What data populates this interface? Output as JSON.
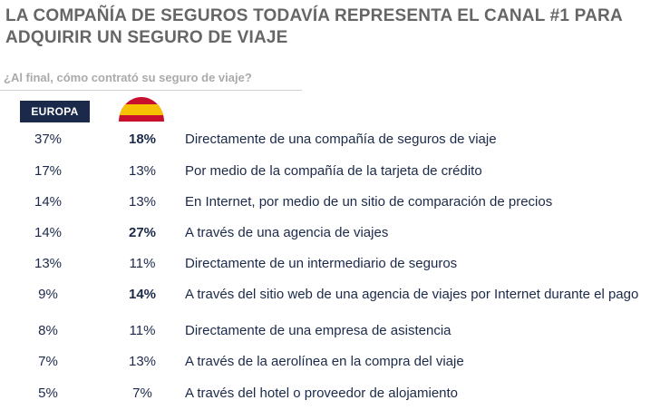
{
  "title_lines": [
    "LA COMPAÑÍA DE SEGUROS TODAVÍA REPRESENTA EL CANAL #1 PARA",
    "ADQUIRIR UN SEGURO DE VIAJE"
  ],
  "question": "¿Al final, cómo contrató su seguro de viaje?",
  "colors": {
    "text_navy": "#1b2a4a",
    "title_gray": "#666666",
    "question_gray": "#aaaaaa",
    "flag_red": "#c8102e",
    "flag_yellow": "#f6c100"
  },
  "chart_data": {
    "type": "table",
    "columns": [
      "EUROPA",
      "spain-flag",
      ""
    ],
    "europa_header": "EUROPA",
    "flag_icon": "spain-flag-icon",
    "rows": [
      {
        "europa": "37%",
        "spain": "18%",
        "spain_bold": true,
        "label": "Directamente de una compañía de seguros de viaje"
      },
      {
        "europa": "17%",
        "spain": "13%",
        "spain_bold": false,
        "label": "Por medio de la compañía de la tarjeta de crédito"
      },
      {
        "europa": "14%",
        "spain": "13%",
        "spain_bold": false,
        "label": "En Internet, por medio de un sitio de comparación de precios"
      },
      {
        "europa": "14%",
        "spain": "27%",
        "spain_bold": true,
        "label": "A través de una agencia de viajes"
      },
      {
        "europa": "13%",
        "spain": "11%",
        "spain_bold": false,
        "label": "Directamente de un intermediario de seguros"
      },
      {
        "europa": "9%",
        "spain": "14%",
        "spain_bold": true,
        "label": "A través del sitio web de una agencia de viajes por Internet durante el pago"
      },
      {
        "europa": "8%",
        "spain": "11%",
        "spain_bold": false,
        "label": "Directamente de una empresa de asistencia"
      },
      {
        "europa": "7%",
        "spain": "13%",
        "spain_bold": false,
        "label": "A través de la aerolínea en la compra del viaje"
      },
      {
        "europa": "5%",
        "spain": "7%",
        "spain_bold": false,
        "label": "A través del hotel o proveedor de alojamiento"
      }
    ]
  }
}
